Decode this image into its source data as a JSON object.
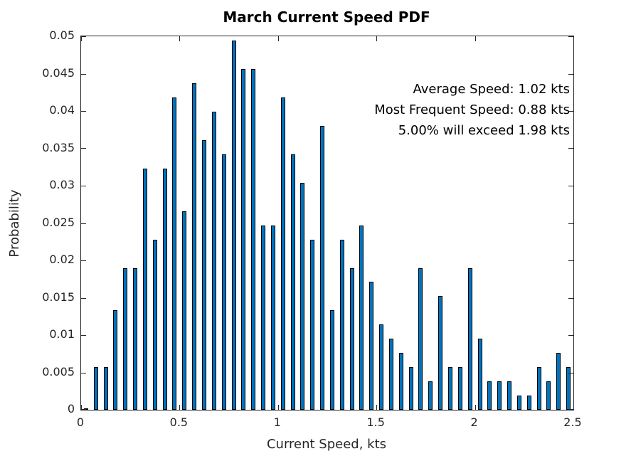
{
  "figure": {
    "background": "#ffffff",
    "axes_color": "#262626"
  },
  "chart_data": {
    "type": "bar",
    "title": "March Current Speed PDF",
    "xlabel": "Current Speed, kts",
    "ylabel": "Probability",
    "xlim": [
      0,
      2.5
    ],
    "ylim": [
      0,
      0.05
    ],
    "grid": false,
    "legend": null,
    "bar_color": "#0072BD",
    "bar_edge_color": "#000000",
    "bin_width": 0.05,
    "xticks": [
      0,
      0.5,
      1,
      1.5,
      2,
      2.5
    ],
    "xtick_labels": [
      "0",
      "0.5",
      "1",
      "1.5",
      "2",
      "2.5"
    ],
    "yticks": [
      0,
      0.005,
      0.01,
      0.015,
      0.02,
      0.025,
      0.03,
      0.035,
      0.04,
      0.045,
      0.05
    ],
    "ytick_labels": [
      "0",
      "0.005",
      "0.01",
      "0.015",
      "0.02",
      "0.025",
      "0.03",
      "0.035",
      "0.04",
      "0.045",
      "0.05"
    ],
    "x": [
      0.025,
      0.075,
      0.125,
      0.175,
      0.225,
      0.275,
      0.325,
      0.375,
      0.425,
      0.475,
      0.525,
      0.575,
      0.625,
      0.675,
      0.725,
      0.775,
      0.825,
      0.875,
      0.925,
      0.975,
      1.025,
      1.075,
      1.125,
      1.175,
      1.225,
      1.275,
      1.325,
      1.375,
      1.425,
      1.475,
      1.525,
      1.575,
      1.625,
      1.675,
      1.725,
      1.775,
      1.825,
      1.875,
      1.925,
      1.975,
      2.025,
      2.075,
      2.125,
      2.175,
      2.225,
      2.275,
      2.325,
      2.375,
      2.425,
      2.475
    ],
    "values": [
      0.0002,
      0.0057,
      0.0057,
      0.0133,
      0.019,
      0.019,
      0.0323,
      0.0228,
      0.0323,
      0.0418,
      0.0266,
      0.0437,
      0.0361,
      0.0399,
      0.0342,
      0.0494,
      0.0456,
      0.0456,
      0.0247,
      0.0247,
      0.0418,
      0.0342,
      0.0304,
      0.0228,
      0.038,
      0.0133,
      0.0228,
      0.019,
      0.0247,
      0.0171,
      0.0114,
      0.0095,
      0.0076,
      0.0057,
      0.019,
      0.0038,
      0.0152,
      0.0057,
      0.0057,
      0.019,
      0.0095,
      0.0038,
      0.0038,
      0.0038,
      0.0019,
      0.0019,
      0.0057,
      0.0038,
      0.0076,
      0.0057
    ],
    "annotations": [
      "Average Speed: 1.02 kts",
      "Most Frequent Speed: 0.88 kts",
      "5.00% will exceed 1.98 kts"
    ]
  }
}
